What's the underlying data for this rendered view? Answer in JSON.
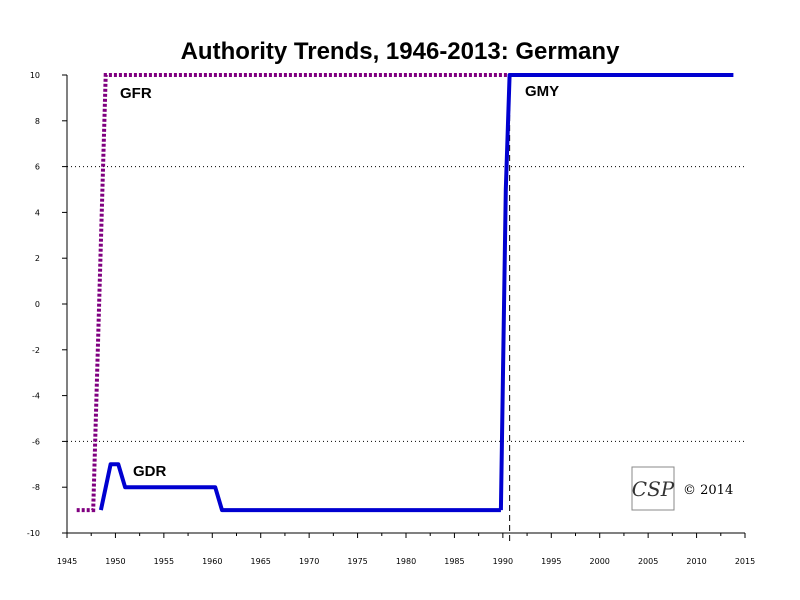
{
  "chart_data": {
    "type": "line",
    "title": "Authority Trends, 1946-2013: Germany",
    "xlabel": "",
    "ylabel": "",
    "xlim": [
      1945,
      2015
    ],
    "ylim": [
      -10,
      10
    ],
    "x_ticks": [
      1945,
      1950,
      1955,
      1960,
      1965,
      1970,
      1975,
      1980,
      1985,
      1990,
      1995,
      2000,
      2005,
      2010,
      2015
    ],
    "y_ticks": [
      -10,
      -8,
      -6,
      -4,
      -2,
      0,
      2,
      4,
      6,
      8,
      10
    ],
    "reference_lines": [
      {
        "orientation": "horizontal",
        "value": 6,
        "style": "dotted"
      },
      {
        "orientation": "horizontal",
        "value": -6,
        "style": "dotted"
      },
      {
        "orientation": "vertical",
        "value": 1990.7,
        "style": "dashed"
      }
    ],
    "grid": false,
    "series": [
      {
        "name": "GFR",
        "color": "#800080",
        "line_style": "dotted",
        "points": [
          [
            1946,
            -9
          ],
          [
            1947.7,
            -9
          ],
          [
            1949,
            10
          ],
          [
            1990.7,
            10
          ]
        ]
      },
      {
        "name": "GDR",
        "color": "#0000d0",
        "line_style": "solid",
        "points": [
          [
            1948.5,
            -9
          ],
          [
            1949.5,
            -7
          ],
          [
            1950.3,
            -7
          ],
          [
            1951,
            -8
          ],
          [
            1960.3,
            -8
          ],
          [
            1961,
            -9
          ],
          [
            1989.8,
            -9
          ]
        ]
      },
      {
        "name": "GMY",
        "color": "#0000d0",
        "line_style": "solid",
        "points": [
          [
            1989.8,
            -9
          ],
          [
            1990.3,
            5
          ],
          [
            1990.7,
            10
          ],
          [
            2013.8,
            10
          ]
        ]
      }
    ]
  },
  "labels": {
    "copyright": "© 2014",
    "logo": "CSP"
  },
  "colors": {
    "axis": "#000000",
    "reference_line": "#000000"
  }
}
